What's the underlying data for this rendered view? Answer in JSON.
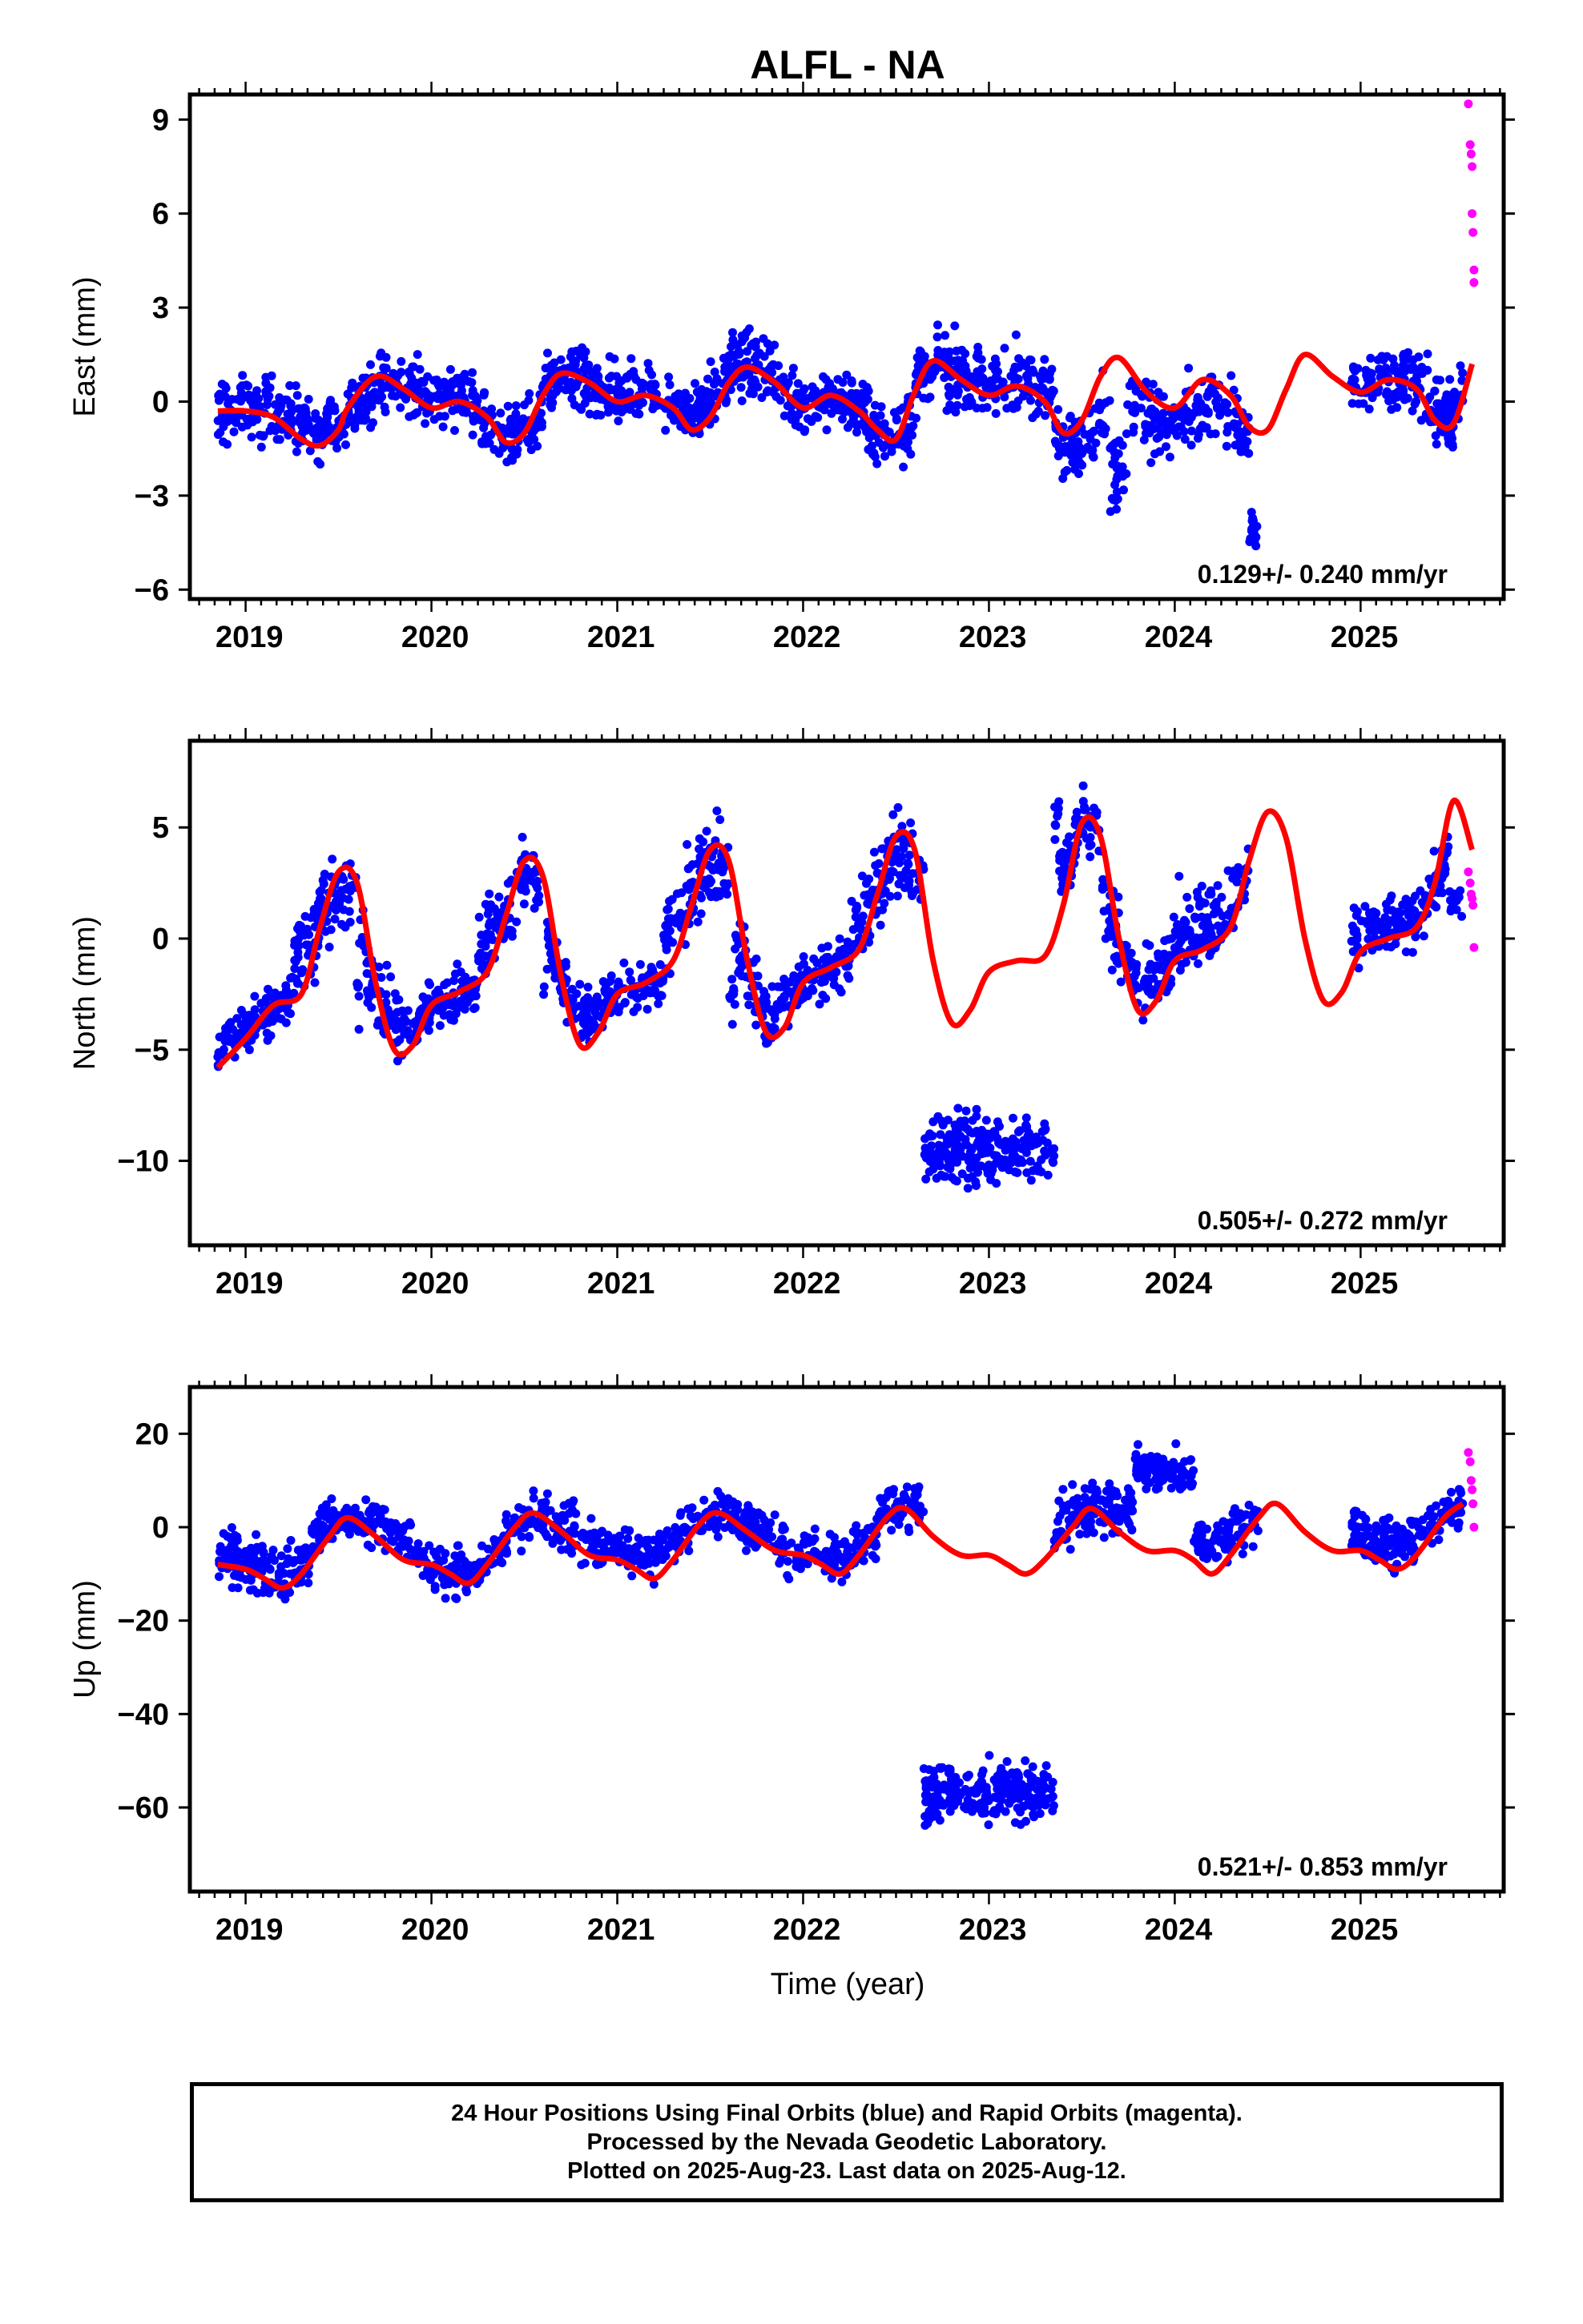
{
  "title": "ALFL - NA",
  "colors": {
    "final": "#0000ff",
    "rapid": "#ff00ff",
    "model": "#ff0000",
    "frame": "#000000"
  },
  "xlabel": "Time (year)",
  "chart_data": [
    {
      "type": "scatter",
      "name": "east",
      "ylabel": "East (mm)",
      "rate_label": "0.129+/- 0.240 mm/yr",
      "xlim": [
        2018.7,
        2025.77
      ],
      "ylim": [
        -6.3,
        9.8
      ],
      "yticks": [
        -6,
        -3,
        0,
        3,
        6,
        9
      ],
      "ytick_labels": [
        "−6",
        "−3",
        "0",
        "3",
        "6",
        "9"
      ],
      "xticks": [
        2019,
        2020,
        2021,
        2022,
        2023,
        2024,
        2025
      ],
      "xtick_labels": [
        "2019",
        "2020",
        "2021",
        "2022",
        "2023",
        "2024",
        "2025"
      ],
      "grid": false,
      "model_curve": {
        "x": [
          2018.85,
          2019.0,
          2019.15,
          2019.3,
          2019.4,
          2019.5,
          2019.55,
          2019.7,
          2019.85,
          2020.0,
          2020.15,
          2020.3,
          2020.4,
          2020.5,
          2020.6,
          2020.7,
          2020.85,
          2021.0,
          2021.15,
          2021.3,
          2021.4,
          2021.5,
          2021.6,
          2021.7,
          2021.85,
          2022.0,
          2022.15,
          2022.3,
          2022.4,
          2022.5,
          2022.6,
          2022.7,
          2022.85,
          2023.0,
          2023.15,
          2023.3,
          2023.4,
          2023.5,
          2023.6,
          2023.7,
          2023.85,
          2024.0,
          2024.15,
          2024.3,
          2024.4,
          2024.5,
          2024.6,
          2024.7,
          2024.85,
          2025.0,
          2025.15,
          2025.3,
          2025.4,
          2025.5,
          2025.6
        ],
        "y": [
          -0.3,
          -0.3,
          -0.5,
          -1.2,
          -1.4,
          -0.9,
          -0.2,
          0.8,
          0.4,
          -0.2,
          0.0,
          -0.5,
          -1.3,
          -1.0,
          0.2,
          0.9,
          0.6,
          0.0,
          0.2,
          -0.2,
          -0.9,
          -0.5,
          0.6,
          1.1,
          0.6,
          -0.2,
          0.2,
          -0.3,
          -0.9,
          -1.2,
          0.3,
          1.3,
          0.7,
          0.2,
          0.5,
          0.0,
          -1.0,
          -0.6,
          0.8,
          1.4,
          0.3,
          -0.2,
          0.7,
          0.2,
          -0.8,
          -0.9,
          0.4,
          1.5,
          0.8,
          0.3,
          0.7,
          0.4,
          -0.6,
          -0.7,
          1.2
        ]
      },
      "blue_clusters": [
        {
          "x": [
            2018.85,
            2019.75
          ],
          "y_base": -0.1,
          "spread": 1.0,
          "n": 260
        },
        {
          "x": [
            2019.75,
            2020.25
          ],
          "y_base": 0.6,
          "spread": 0.9,
          "n": 140
        },
        {
          "x": [
            2020.25,
            2020.6
          ],
          "y_base": -1.0,
          "spread": 0.9,
          "n": 110
        },
        {
          "x": [
            2020.6,
            2021.5
          ],
          "y_base": 0.5,
          "spread": 0.9,
          "n": 260
        },
        {
          "x": [
            2021.5,
            2021.85
          ],
          "y_base": 1.6,
          "spread": 1.0,
          "n": 110
        },
        {
          "x": [
            2021.85,
            2022.35
          ],
          "y_base": 0.1,
          "spread": 1.0,
          "n": 140
        },
        {
          "x": [
            2022.35,
            2022.6
          ],
          "y_base": -1.4,
          "spread": 1.1,
          "n": 70
        },
        {
          "x": [
            2022.6,
            2023.35
          ],
          "y_base": 1.1,
          "spread": 1.0,
          "n": 230
        },
        {
          "x": [
            2023.35,
            2023.75
          ],
          "y_base": -2.2,
          "spread": 1.1,
          "n": 110
        },
        {
          "x": [
            2023.75,
            2024.4
          ],
          "y_base": -1.6,
          "spread": 1.1,
          "n": 170
        },
        {
          "x": [
            2024.4,
            2024.45
          ],
          "y_base": -4.2,
          "spread": 0.6,
          "n": 20
        },
        {
          "x": [
            2024.95,
            2025.55
          ],
          "y_base": 0.9,
          "spread": 0.9,
          "n": 160
        },
        {
          "x": [
            2025.35,
            2025.5
          ],
          "y_base": -0.9,
          "spread": 0.8,
          "n": 40
        }
      ],
      "rapid_points": {
        "x": [
          2025.58,
          2025.59,
          2025.595,
          2025.6,
          2025.6,
          2025.605,
          2025.61,
          2025.61
        ],
        "y": [
          9.5,
          8.2,
          7.9,
          7.5,
          6.0,
          5.4,
          4.2,
          3.8
        ]
      }
    },
    {
      "type": "scatter",
      "name": "north",
      "ylabel": "North (mm)",
      "rate_label": "0.505+/- 0.272 mm/yr",
      "xlim": [
        2018.7,
        2025.77
      ],
      "ylim": [
        -13.8,
        8.9
      ],
      "yticks": [
        -10,
        -5,
        0,
        5
      ],
      "ytick_labels": [
        "−10",
        "−5",
        "0",
        "5"
      ],
      "xticks": [
        2019,
        2020,
        2021,
        2022,
        2023,
        2024,
        2025
      ],
      "xtick_labels": [
        "2019",
        "2020",
        "2021",
        "2022",
        "2023",
        "2024",
        "2025"
      ],
      "grid": false,
      "model_curve": {
        "x": [
          2018.85,
          2019.0,
          2019.15,
          2019.3,
          2019.4,
          2019.5,
          2019.6,
          2019.7,
          2019.8,
          2019.9,
          2020.0,
          2020.15,
          2020.3,
          2020.4,
          2020.5,
          2020.6,
          2020.7,
          2020.8,
          2020.9,
          2021.0,
          2021.15,
          2021.3,
          2021.4,
          2021.5,
          2021.6,
          2021.7,
          2021.8,
          2021.9,
          2022.0,
          2022.15,
          2022.3,
          2022.4,
          2022.5,
          2022.6,
          2022.7,
          2022.8,
          2022.9,
          2023.0,
          2023.15,
          2023.3,
          2023.4,
          2023.5,
          2023.6,
          2023.7,
          2023.8,
          2023.9,
          2024.0,
          2024.15,
          2024.3,
          2024.4,
          2024.5,
          2024.6,
          2024.7,
          2024.8,
          2024.9,
          2025.0,
          2025.15,
          2025.3,
          2025.4,
          2025.5,
          2025.6
        ],
        "y": [
          -5.8,
          -4.5,
          -3.0,
          -2.5,
          0.5,
          3.0,
          2.5,
          -2.0,
          -5.0,
          -4.8,
          -3.0,
          -2.4,
          -1.5,
          1.0,
          3.5,
          2.8,
          -1.8,
          -4.8,
          -4.2,
          -2.5,
          -2.0,
          -1.0,
          1.5,
          4.0,
          3.5,
          -1.0,
          -4.2,
          -4.0,
          -2.0,
          -1.3,
          -0.5,
          2.0,
          4.6,
          4.0,
          -1.0,
          -3.8,
          -3.2,
          -1.5,
          -1.0,
          -0.8,
          1.5,
          5.2,
          4.6,
          0.0,
          -3.2,
          -2.8,
          -1.0,
          -0.5,
          0.5,
          3.5,
          5.7,
          4.5,
          0.0,
          -2.8,
          -2.4,
          -0.6,
          0.0,
          0.5,
          2.5,
          6.2,
          4.0
        ]
      },
      "blue_clusters": [
        {
          "x": [
            2018.85,
            2019.25
          ],
          "y_base": -3.3,
          "spread": 1.0,
          "n": 120
        },
        {
          "x": [
            2019.25,
            2019.6
          ],
          "y_base": 1.5,
          "spread": 1.8,
          "n": 110
        },
        {
          "x": [
            2019.6,
            2019.85
          ],
          "y_base": -2.8,
          "spread": 1.6,
          "n": 80
        },
        {
          "x": [
            2019.85,
            2020.25
          ],
          "y_base": -2.8,
          "spread": 1.0,
          "n": 110
        },
        {
          "x": [
            2020.25,
            2020.6
          ],
          "y_base": 1.8,
          "spread": 1.8,
          "n": 110
        },
        {
          "x": [
            2020.6,
            2020.85
          ],
          "y_base": -2.0,
          "spread": 1.4,
          "n": 80
        },
        {
          "x": [
            2020.85,
            2021.25
          ],
          "y_base": -2.3,
          "spread": 1.0,
          "n": 110
        },
        {
          "x": [
            2021.25,
            2021.6
          ],
          "y_base": 2.5,
          "spread": 1.8,
          "n": 110
        },
        {
          "x": [
            2021.6,
            2021.85
          ],
          "y_base": -2.5,
          "spread": 1.5,
          "n": 80
        },
        {
          "x": [
            2021.85,
            2022.25
          ],
          "y_base": -1.3,
          "spread": 1.1,
          "n": 110
        },
        {
          "x": [
            2022.25,
            2022.65
          ],
          "y_base": 2.8,
          "spread": 1.8,
          "n": 120
        },
        {
          "x": [
            2022.65,
            2023.35
          ],
          "y_base": -9.5,
          "spread": 1.5,
          "n": 230
        },
        {
          "x": [
            2023.35,
            2023.6
          ],
          "y_base": 5.5,
          "spread": 1.5,
          "n": 80
        },
        {
          "x": [
            2023.6,
            2024.0
          ],
          "y_base": -0.5,
          "spread": 1.6,
          "n": 120
        },
        {
          "x": [
            2024.0,
            2024.4
          ],
          "y_base": 2.5,
          "spread": 1.6,
          "n": 120
        },
        {
          "x": [
            2024.95,
            2025.55
          ],
          "y_base": 1.6,
          "spread": 1.2,
          "n": 160
        }
      ],
      "rapid_points": {
        "x": [
          2025.58,
          2025.59,
          2025.595,
          2025.6,
          2025.605,
          2025.61
        ],
        "y": [
          3.0,
          2.5,
          2.0,
          1.8,
          1.5,
          -0.4
        ]
      }
    },
    {
      "type": "scatter",
      "name": "up",
      "ylabel": "Up (mm)",
      "rate_label": "0.521+/- 0.853 mm/yr",
      "xlim": [
        2018.7,
        2025.77
      ],
      "ylim": [
        -78,
        30
      ],
      "yticks": [
        -60,
        -40,
        -20,
        0,
        20
      ],
      "ytick_labels": [
        "−60",
        "−40",
        "−20",
        "0",
        "20"
      ],
      "xticks": [
        2019,
        2020,
        2021,
        2022,
        2023,
        2024,
        2025
      ],
      "xtick_labels": [
        "2019",
        "2020",
        "2021",
        "2022",
        "2023",
        "2024",
        "2025"
      ],
      "grid": false,
      "model_curve": {
        "x": [
          2018.85,
          2019.0,
          2019.1,
          2019.2,
          2019.3,
          2019.45,
          2019.55,
          2019.7,
          2019.85,
          2020.0,
          2020.1,
          2020.2,
          2020.3,
          2020.45,
          2020.55,
          2020.7,
          2020.85,
          2021.0,
          2021.1,
          2021.2,
          2021.3,
          2021.45,
          2021.55,
          2021.7,
          2021.85,
          2022.0,
          2022.1,
          2022.2,
          2022.3,
          2022.45,
          2022.55,
          2022.7,
          2022.85,
          2023.0,
          2023.1,
          2023.2,
          2023.3,
          2023.45,
          2023.55,
          2023.7,
          2023.85,
          2024.0,
          2024.1,
          2024.2,
          2024.3,
          2024.45,
          2024.55,
          2024.7,
          2024.85,
          2025.0,
          2025.1,
          2025.2,
          2025.3,
          2025.45,
          2025.55
        ],
        "y": [
          -8,
          -9,
          -11,
          -13,
          -10,
          -2,
          2,
          -2,
          -7,
          -8,
          -10,
          -12,
          -8,
          0,
          3,
          -1,
          -6,
          -7,
          -9,
          -11,
          -7,
          1,
          3,
          -1,
          -5,
          -6,
          -8,
          -10,
          -6,
          2,
          4,
          -2,
          -6,
          -6,
          -8,
          -10,
          -7,
          0,
          4,
          -1,
          -5,
          -5,
          -7,
          -10,
          -6,
          2,
          5,
          -1,
          -5,
          -5,
          -7,
          -9,
          -6,
          2,
          5
        ]
      },
      "blue_clusters": [
        {
          "x": [
            2018.85,
            2019.35
          ],
          "y_base": -5,
          "spread": 6,
          "n": 140
        },
        {
          "x": [
            2019.35,
            2019.9
          ],
          "y_base": 4,
          "spread": 5,
          "n": 140
        },
        {
          "x": [
            2019.9,
            2020.4
          ],
          "y_base": -8,
          "spread": 5,
          "n": 130
        },
        {
          "x": [
            2020.4,
            2021.3
          ],
          "y_base": 1,
          "spread": 5,
          "n": 220
        },
        {
          "x": [
            2021.3,
            2021.85
          ],
          "y_base": 4,
          "spread": 5,
          "n": 140
        },
        {
          "x": [
            2021.85,
            2022.4
          ],
          "y_base": -3,
          "spread": 5,
          "n": 130
        },
        {
          "x": [
            2022.4,
            2022.65
          ],
          "y_base": 7,
          "spread": 5,
          "n": 60
        },
        {
          "x": [
            2022.65,
            2023.35
          ],
          "y_base": -57,
          "spread": 6,
          "n": 230
        },
        {
          "x": [
            2023.35,
            2023.75
          ],
          "y_base": 8,
          "spread": 6,
          "n": 110
        },
        {
          "x": [
            2023.75,
            2024.1
          ],
          "y_base": 12,
          "spread": 5,
          "n": 100
        },
        {
          "x": [
            2024.1,
            2024.45
          ],
          "y_base": 4,
          "spread": 5,
          "n": 90
        },
        {
          "x": [
            2024.95,
            2025.55
          ],
          "y_base": 4,
          "spread": 5,
          "n": 160
        }
      ],
      "rapid_points": {
        "x": [
          2025.58,
          2025.59,
          2025.595,
          2025.6,
          2025.605,
          2025.61
        ],
        "y": [
          16,
          14,
          10,
          8,
          5,
          0
        ]
      }
    }
  ],
  "footer": {
    "line1": "24 Hour Positions Using Final Orbits (blue) and Rapid Orbits (magenta).",
    "line2": "Processed by the Nevada Geodetic Laboratory.",
    "line3": "Plotted on 2025-Aug-23. Last data on 2025-Aug-12."
  }
}
